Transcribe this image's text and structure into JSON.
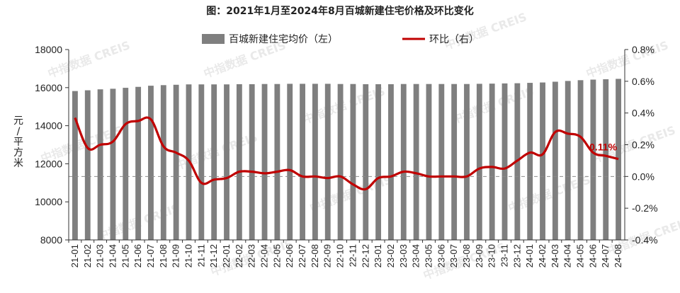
{
  "chart_data": {
    "type": "bar+line",
    "title": "图：2021年1月至2024年8月百城新建住宅价格及环比变化",
    "ylabel": "元/平方米",
    "ylim": [
      8000,
      18000
    ],
    "y2lim": [
      -0.4,
      0.8
    ],
    "yticks": [
      "18000",
      "16000",
      "14000",
      "12000",
      "10000",
      "8000"
    ],
    "y2ticks": [
      "0.8%",
      "0.6%",
      "0.4%",
      "0.2%",
      "0.0%",
      "-0.2%",
      "-0.4%"
    ],
    "legend_position": "top-center",
    "categories": [
      "21-01",
      "21-02",
      "21-03",
      "21-04",
      "21-05",
      "21-06",
      "21-07",
      "21-08",
      "21-09",
      "21-10",
      "21-11",
      "21-12",
      "22-01",
      "22-02",
      "22-03",
      "22-04",
      "22-05",
      "22-06",
      "22-07",
      "22-08",
      "22-09",
      "22-10",
      "22-11",
      "22-12",
      "23-01",
      "23-02",
      "23-03",
      "23-04",
      "23-05",
      "23-06",
      "23-07",
      "23-08",
      "23-09",
      "23-10",
      "23-11",
      "23-12",
      "24-01",
      "24-02",
      "24-03",
      "24-04",
      "24-05",
      "24-06",
      "24-07",
      "24-08"
    ],
    "series": [
      {
        "name": "百城新建住宅均价（左）",
        "type": "bar",
        "axis": "left",
        "color": "#7f7f7f",
        "values": [
          15820,
          15860,
          15910,
          15940,
          15990,
          16040,
          16100,
          16130,
          16150,
          16170,
          16170,
          16170,
          16170,
          16180,
          16180,
          16190,
          16190,
          16200,
          16200,
          16200,
          16200,
          16190,
          16190,
          16180,
          16180,
          16180,
          16190,
          16190,
          16190,
          16190,
          16190,
          16190,
          16200,
          16210,
          16220,
          16230,
          16250,
          16270,
          16310,
          16350,
          16390,
          16420,
          16440,
          16460
        ]
      },
      {
        "name": "环比（右）",
        "type": "line",
        "axis": "right",
        "color": "#c00000",
        "values": [
          0.37,
          0.18,
          0.2,
          0.22,
          0.33,
          0.35,
          0.36,
          0.19,
          0.15,
          0.1,
          -0.04,
          -0.02,
          -0.01,
          0.03,
          0.03,
          0.02,
          0.03,
          0.04,
          0.0,
          0.0,
          -0.01,
          0.0,
          -0.05,
          -0.08,
          -0.01,
          0.0,
          0.03,
          0.02,
          0.0,
          0.0,
          0.0,
          0.0,
          0.05,
          0.06,
          0.05,
          0.1,
          0.15,
          0.14,
          0.28,
          0.27,
          0.25,
          0.15,
          0.13,
          0.11
        ]
      }
    ],
    "annotation": {
      "label": "0.11%",
      "color": "#c00000"
    },
    "zero_line": "dashed"
  },
  "watermark": "中指数据 CREIS"
}
